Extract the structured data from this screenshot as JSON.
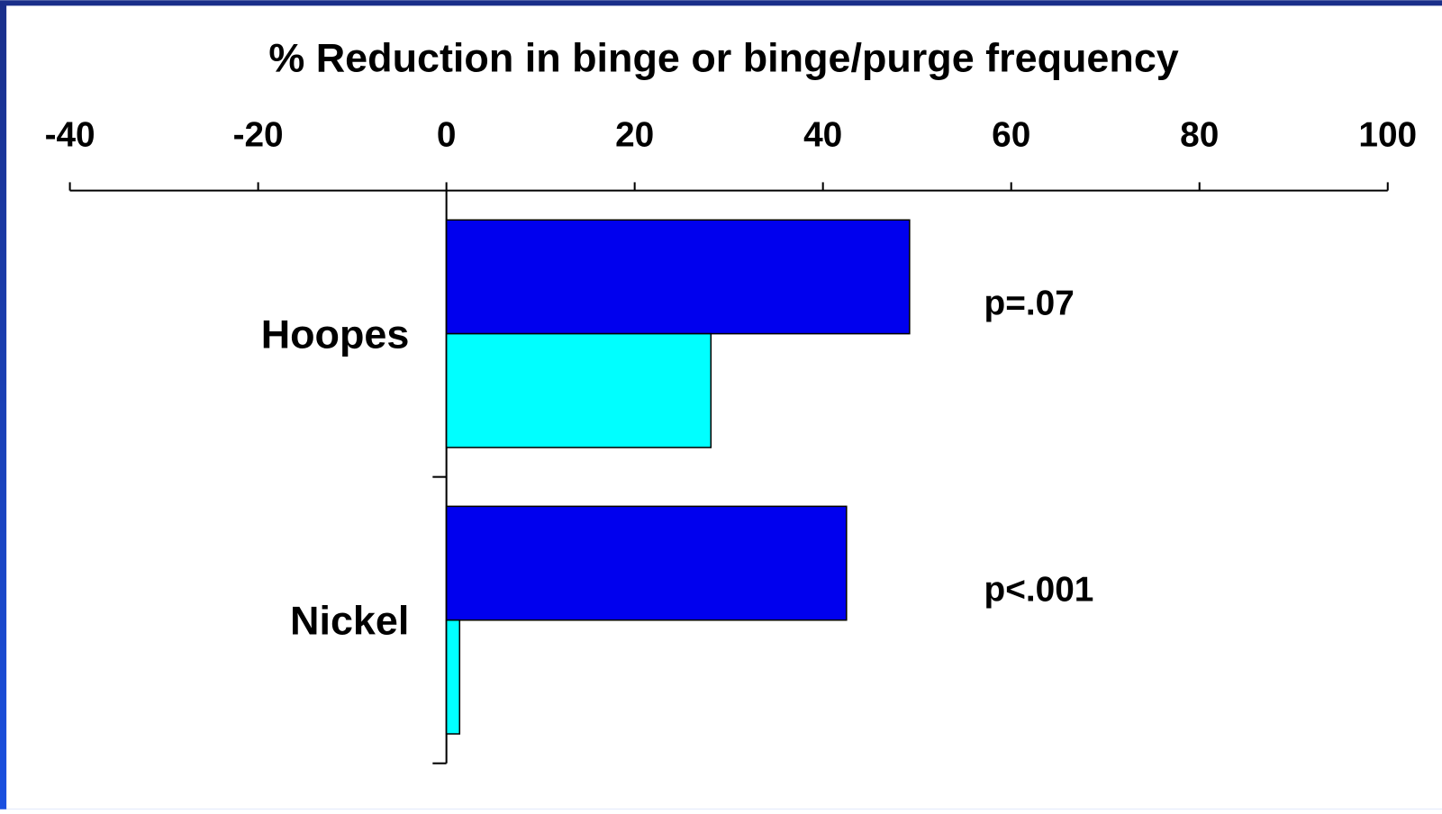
{
  "chart_data": {
    "type": "hbar",
    "title": "% Reduction in binge or binge/purge frequency",
    "categories": [
      "Hoopes",
      "Nickel"
    ],
    "series": [
      {
        "color": "#0000ee",
        "values": [
          49.2,
          42.5
        ]
      },
      {
        "color": "#00ffff",
        "values": [
          28.1,
          1.4
        ]
      }
    ],
    "annotations": [
      "p=.07",
      "p<.001"
    ],
    "xlim": [
      -40,
      100
    ],
    "xticks": [
      -40,
      -20,
      0,
      20,
      40,
      60,
      80,
      100
    ],
    "axis_position": "top"
  }
}
